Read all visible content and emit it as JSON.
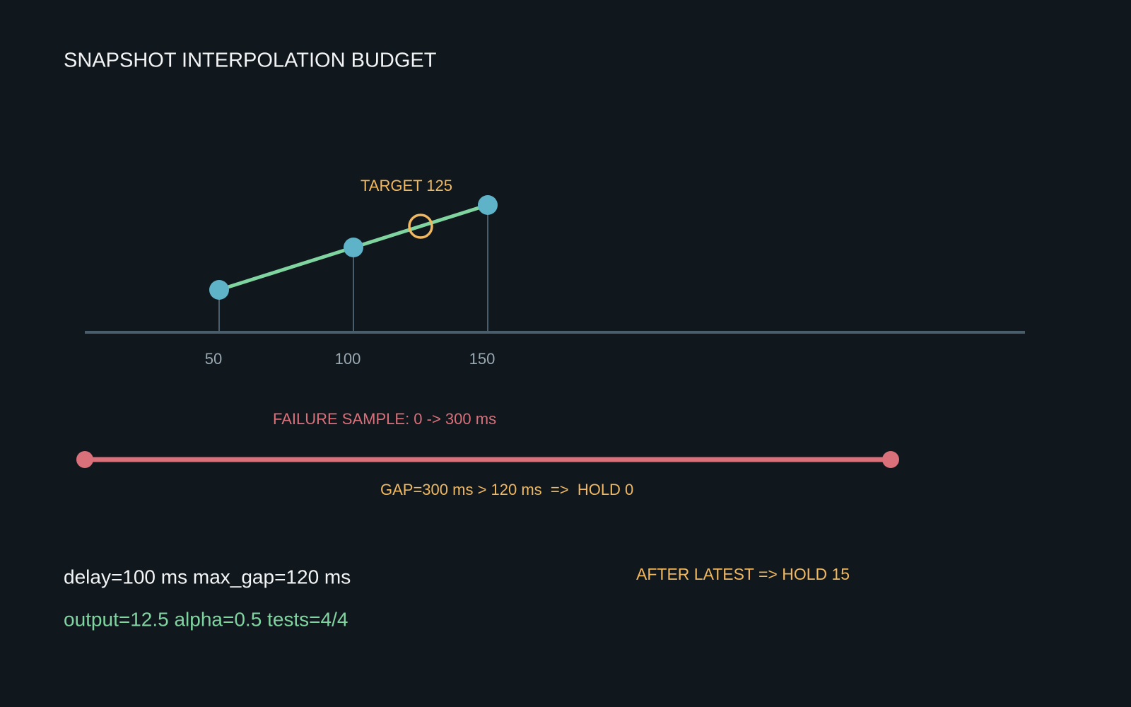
{
  "title": "SNAPSHOT INTERPOLATION BUDGET",
  "timeline": {
    "xlim": [
      0,
      350
    ],
    "xticks": [
      50,
      100,
      150
    ],
    "ylim": [
      0,
      20
    ],
    "snapshots": [
      {
        "t": 50,
        "v": 5
      },
      {
        "t": 100,
        "v": 10
      },
      {
        "t": 150,
        "v": 15
      }
    ],
    "target": {
      "label": "TARGET 125",
      "t": 125,
      "v": 12.5
    }
  },
  "failure": {
    "label": "FAILURE SAMPLE: 0 -> 300 ms",
    "start": 0,
    "end": 300,
    "note": "GAP=300 ms > 120 ms  =>  HOLD 0"
  },
  "params": "delay=100 ms  max_gap=120 ms",
  "result": "output=12.5  alpha=0.5  tests=4/4",
  "after": "AFTER LATEST => HOLD 15"
}
